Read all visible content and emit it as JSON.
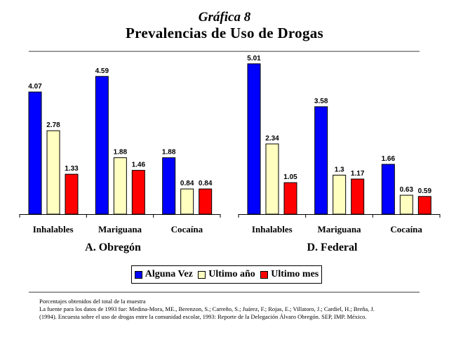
{
  "page": {
    "title_italic": "Gráfica 8",
    "title": "Prevalencias de Uso de Drogas",
    "notes": [
      "Porcentajes obtenidos del total de la muestra",
      "La fuente para los datos de 1993 fue: Medina-Mora, ME., Berenzon, S.; Carreño, S.; Juárez, F.; Rojas, E.; Villatoro, J.; Cardiel, H.; Breña, J.",
      "(1994). Encuesta sobre el uso de drogas entre la comunidad escolar, 1993: Reporte de la Delegación Álvaro Obregón. SEP, IMP. México."
    ]
  },
  "chart_data": [
    {
      "type": "bar",
      "title": "A. Obregón",
      "categories": [
        "Inhalables",
        "Mariguana",
        "Cocaína"
      ],
      "series": [
        {
          "name": "Alguna Vez",
          "color": "#0000ff",
          "values": [
            4.07,
            4.59,
            1.88
          ],
          "labels": [
            "4.07",
            "4.59",
            "1.88"
          ]
        },
        {
          "name": "Ultimo año",
          "color": "#ffffc0",
          "values": [
            2.78,
            1.88,
            0.84
          ],
          "labels": [
            "2.78",
            "1.88",
            "0.84"
          ]
        },
        {
          "name": "Ultimo mes",
          "color": "#ff0000",
          "values": [
            1.33,
            1.46,
            0.84
          ],
          "labels": [
            "1.33",
            "1.46",
            "0.84"
          ]
        }
      ],
      "ylim": [
        0,
        5.1
      ],
      "grid": false,
      "legend": "bottom"
    },
    {
      "type": "bar",
      "title": "D. Federal",
      "categories": [
        "Inhalables",
        "Mariguana",
        "Cocaína"
      ],
      "series": [
        {
          "name": "Alguna Vez",
          "color": "#0000ff",
          "values": [
            5.01,
            3.58,
            1.66
          ],
          "labels": [
            "5.01",
            "3.58",
            "1.66"
          ]
        },
        {
          "name": "Ultimo año",
          "color": "#ffffc0",
          "values": [
            2.34,
            1.3,
            0.63
          ],
          "labels": [
            "2.34",
            "1.3",
            "0.63"
          ]
        },
        {
          "name": "Ultimo mes",
          "color": "#ff0000",
          "values": [
            1.05,
            1.17,
            0.59
          ],
          "labels": [
            "1.05",
            "1.17",
            "0.59"
          ]
        }
      ],
      "ylim": [
        0,
        5.1
      ],
      "grid": false,
      "legend": "bottom"
    }
  ],
  "legend": [
    {
      "name": "Alguna Vez",
      "color": "#0000ff"
    },
    {
      "name": "Ultimo año",
      "color": "#ffffc0"
    },
    {
      "name": "Ultimo mes",
      "color": "#ff0000"
    }
  ]
}
